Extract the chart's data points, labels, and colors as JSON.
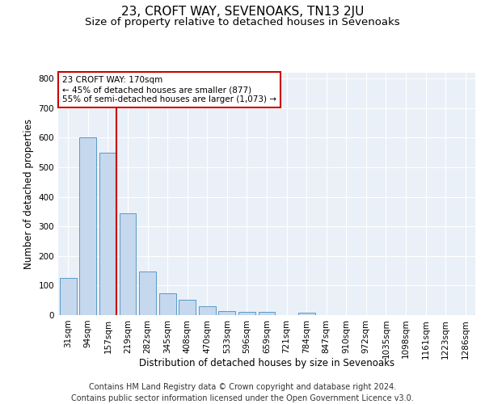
{
  "title": "23, CROFT WAY, SEVENOAKS, TN13 2JU",
  "subtitle": "Size of property relative to detached houses in Sevenoaks",
  "xlabel": "Distribution of detached houses by size in Sevenoaks",
  "ylabel": "Number of detached properties",
  "categories": [
    "31sqm",
    "94sqm",
    "157sqm",
    "219sqm",
    "282sqm",
    "345sqm",
    "408sqm",
    "470sqm",
    "533sqm",
    "596sqm",
    "659sqm",
    "721sqm",
    "784sqm",
    "847sqm",
    "910sqm",
    "972sqm",
    "1035sqm",
    "1098sqm",
    "1161sqm",
    "1223sqm",
    "1286sqm"
  ],
  "values": [
    125,
    600,
    550,
    345,
    148,
    73,
    52,
    30,
    15,
    10,
    10,
    0,
    7,
    0,
    0,
    0,
    0,
    0,
    0,
    0,
    0
  ],
  "bar_color": "#c5d8ed",
  "bar_edge_color": "#5a9ac5",
  "vline_color": "#cc0000",
  "annotation_text": "23 CROFT WAY: 170sqm\n← 45% of detached houses are smaller (877)\n55% of semi-detached houses are larger (1,073) →",
  "annotation_box_color": "#ffffff",
  "annotation_box_edge_color": "#cc0000",
  "ylim": [
    0,
    820
  ],
  "yticks": [
    0,
    100,
    200,
    300,
    400,
    500,
    600,
    700,
    800
  ],
  "footer_line1": "Contains HM Land Registry data © Crown copyright and database right 2024.",
  "footer_line2": "Contains public sector information licensed under the Open Government Licence v3.0.",
  "figure_facecolor": "#ffffff",
  "plot_background_color": "#eaf0f8",
  "grid_color": "#ffffff",
  "title_fontsize": 11,
  "subtitle_fontsize": 9.5,
  "axis_label_fontsize": 8.5,
  "tick_fontsize": 7.5,
  "annotation_fontsize": 7.5,
  "footer_fontsize": 7
}
